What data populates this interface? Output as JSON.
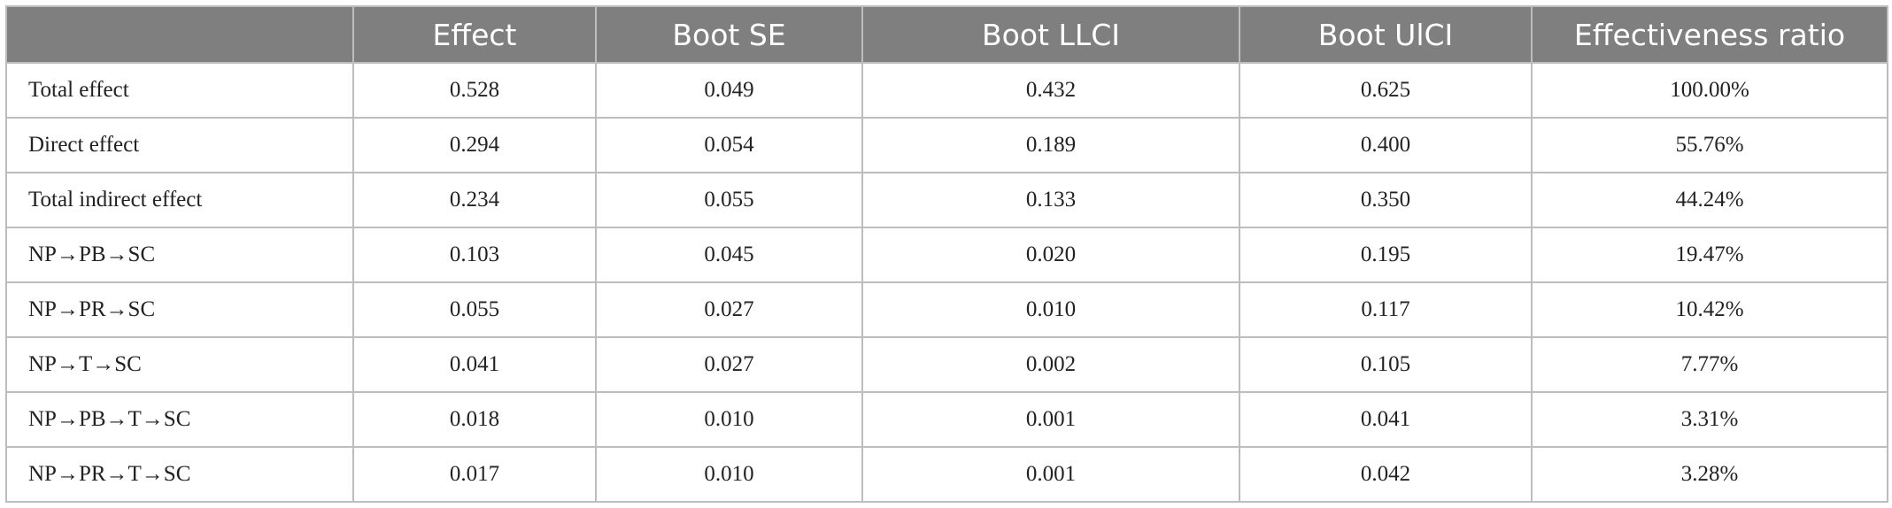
{
  "table": {
    "headers": [
      "",
      "Effect",
      "Boot SE",
      "Boot LLCI",
      "Boot UlCI",
      "Effectiveness ratio"
    ],
    "rows": [
      [
        "Total effect",
        "0.528",
        "0.049",
        "0.432",
        "0.625",
        "100.00%"
      ],
      [
        "Direct effect",
        "0.294",
        "0.054",
        "0.189",
        "0.400",
        "55.76%"
      ],
      [
        "Total indirect effect",
        "0.234",
        "0.055",
        "0.133",
        "0.350",
        "44.24%"
      ],
      [
        "NP→PB→SC",
        "0.103",
        "0.045",
        "0.020",
        "0.195",
        "19.47%"
      ],
      [
        "NP→PR→SC",
        "0.055",
        "0.027",
        "0.010",
        "0.117",
        "10.42%"
      ],
      [
        "NP→T→SC",
        "0.041",
        "0.027",
        "0.002",
        "0.105",
        "7.77%"
      ],
      [
        "NP→PB→T→SC",
        "0.018",
        "0.010",
        "0.001",
        "0.041",
        "3.31%"
      ],
      [
        "NP→PR→T→SC",
        "0.017",
        "0.010",
        "0.001",
        "0.042",
        "3.28%"
      ]
    ]
  },
  "colors": {
    "header_bg": "#7f7f7f",
    "header_text": "#ffffff",
    "border": "#bdbdbd",
    "body_text": "#222222"
  }
}
